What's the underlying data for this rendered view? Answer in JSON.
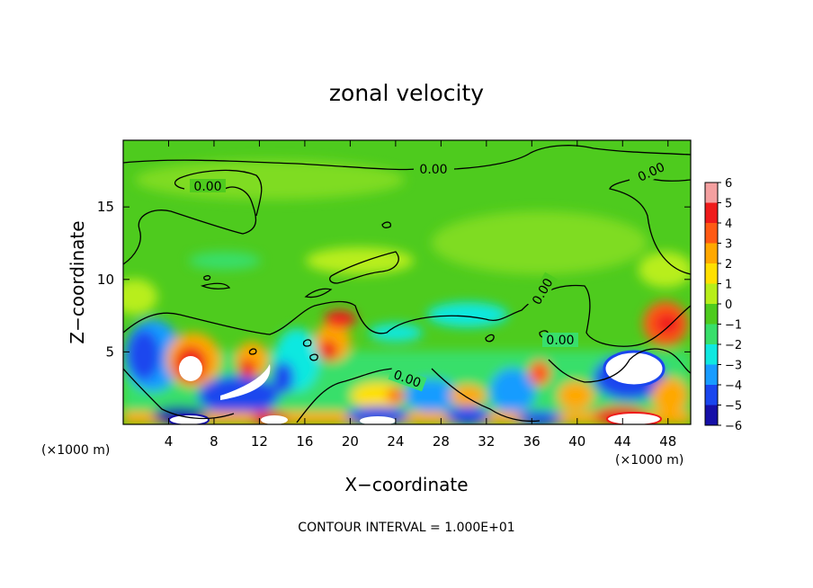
{
  "chart_data": {
    "type": "heatmap",
    "title": "zonal velocity",
    "xlabel": "X−coordinate",
    "ylabel": "Z−coordinate",
    "x_unit_left": "(×1000 m)",
    "x_unit_right": "(×1000 m)",
    "footer": "CONTOUR INTERVAL = 1.000E+01",
    "xlim": [
      0,
      50
    ],
    "ylim": [
      0,
      19.6
    ],
    "x_ticks": [
      4,
      8,
      12,
      16,
      20,
      24,
      28,
      32,
      36,
      40,
      44,
      48
    ],
    "y_ticks": [
      5,
      10,
      15
    ],
    "colorbar": {
      "labels": [
        "6",
        "5",
        "4",
        "3",
        "2",
        "1",
        "0",
        "−1",
        "−2",
        "−3",
        "−4",
        "−5",
        "−6"
      ],
      "colors": [
        "#f4a0a0",
        "#ef1b1b",
        "#ff5a14",
        "#ffa800",
        "#ffe000",
        "#b8ee1a",
        "#4ecb1e",
        "#38df6a",
        "#10e8e0",
        "#189cff",
        "#1a46ee",
        "#1610a8",
        "#7b18b0"
      ]
    },
    "contour_labels": [
      {
        "text": "0.00",
        "x": 28.3,
        "y": 17.8
      },
      {
        "text": "0.00",
        "x": 7.7,
        "y": 16.8
      },
      {
        "text": "0.00",
        "x": 46.0,
        "y": 17.8
      },
      {
        "text": "0.00",
        "x": 37.0,
        "y": 9.0
      },
      {
        "text": "0.00",
        "x": 38.0,
        "y": 6.0
      },
      {
        "text": "0.00",
        "x": 25.0,
        "y": 3.2
      }
    ]
  }
}
